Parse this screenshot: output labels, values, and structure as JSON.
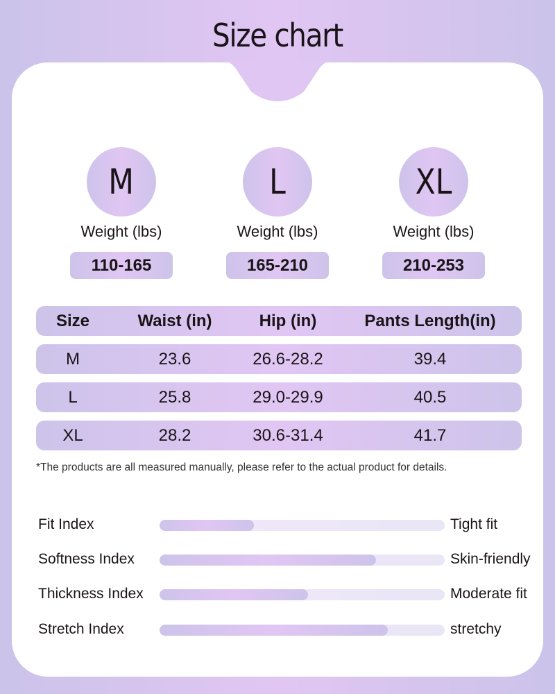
{
  "title": "Size chart",
  "sizes": [
    {
      "size": "M",
      "weight_label": "Weight (lbs)",
      "weight": "110-165"
    },
    {
      "size": "L",
      "weight_label": "Weight (lbs)",
      "weight": "165-210"
    },
    {
      "size": "XL",
      "weight_label": "Weight (lbs)",
      "weight": "210-253"
    }
  ],
  "table": {
    "headers": [
      "Size",
      "Waist (in)",
      "Hip (in)",
      "Pants Length(in)"
    ],
    "rows": [
      [
        "M",
        "23.6",
        "26.6-28.2",
        "39.4"
      ],
      [
        "L",
        "25.8",
        "29.0-29.9",
        "40.5"
      ],
      [
        "XL",
        "28.2",
        "30.6-31.4",
        "41.7"
      ]
    ]
  },
  "note": "*The products are all measured manually, please refer to the actual product for details.",
  "indices": [
    {
      "label": "Fit Index",
      "value": "Tight fit",
      "level_percent": 33
    },
    {
      "label": "Softness Index",
      "value": "Skin-friendly",
      "level_percent": 76
    },
    {
      "label": "Thickness Index",
      "value": "Moderate fit",
      "level_percent": 52
    },
    {
      "label": "Stretch Index",
      "value": "stretchy",
      "level_percent": 80
    }
  ],
  "colors": {
    "accent_edge": "#cdc4ea",
    "accent_center": "#e1c6f3",
    "card": "#ffffff"
  }
}
